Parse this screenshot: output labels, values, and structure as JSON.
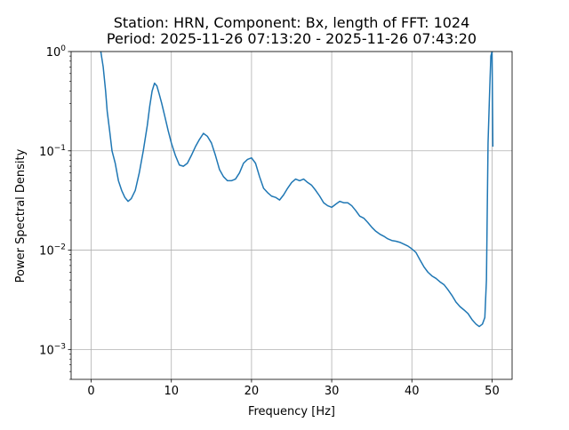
{
  "chart_data": {
    "type": "line",
    "title": "Station: HRN, Component: Bx, length of FFT: 1024",
    "subtitle": "Period: 2025-11-26 07:13:20 - 2025-11-26 07:43:20",
    "xlabel": "Frequency [Hz]",
    "ylabel": "Power Spectral Density",
    "xlim": [
      -2.5,
      52.5
    ],
    "ylim": [
      0.0005,
      1
    ],
    "yscale": "log",
    "grid": true,
    "x_ticks": [
      0,
      10,
      20,
      30,
      40,
      50
    ],
    "x_tick_labels": [
      "0",
      "10",
      "20",
      "30",
      "40",
      "50"
    ],
    "y_ticks": [
      0.001,
      0.01,
      0.1,
      1
    ],
    "series": [
      {
        "color": "#1f77b4",
        "x": [
          1.2,
          1.5,
          1.8,
          2.0,
          2.3,
          2.6,
          3.0,
          3.4,
          3.8,
          4.2,
          4.6,
          5.0,
          5.5,
          6.0,
          6.5,
          7.0,
          7.3,
          7.6,
          7.9,
          8.2,
          8.5,
          8.8,
          9.2,
          9.6,
          10.0,
          10.5,
          11.0,
          11.5,
          12.0,
          12.5,
          13.0,
          13.5,
          14.0,
          14.5,
          15.0,
          15.5,
          16.0,
          16.5,
          17.0,
          17.5,
          18.0,
          18.5,
          19.0,
          19.5,
          20.0,
          20.5,
          21.0,
          21.5,
          22.0,
          22.5,
          23.0,
          23.5,
          24.0,
          24.5,
          25.0,
          25.5,
          26.0,
          26.5,
          27.0,
          27.5,
          28.0,
          28.5,
          29.0,
          29.5,
          30.0,
          30.5,
          31.0,
          31.5,
          32.0,
          32.5,
          33.0,
          33.5,
          34.0,
          34.5,
          35.0,
          35.5,
          36.0,
          36.5,
          37.0,
          37.5,
          38.0,
          38.5,
          39.0,
          39.5,
          40.0,
          40.5,
          41.0,
          41.5,
          42.0,
          42.5,
          43.0,
          43.5,
          44.0,
          44.5,
          45.0,
          45.5,
          46.0,
          46.5,
          47.0,
          47.5,
          48.0,
          48.4,
          48.8,
          49.1,
          49.3,
          49.5,
          49.7,
          49.85,
          50.0,
          50.1
        ],
        "y": [
          1.0,
          0.7,
          0.4,
          0.25,
          0.16,
          0.1,
          0.075,
          0.05,
          0.04,
          0.034,
          0.031,
          0.033,
          0.04,
          0.06,
          0.1,
          0.18,
          0.28,
          0.4,
          0.48,
          0.45,
          0.37,
          0.3,
          0.22,
          0.16,
          0.12,
          0.09,
          0.072,
          0.07,
          0.075,
          0.09,
          0.11,
          0.13,
          0.15,
          0.14,
          0.12,
          0.09,
          0.065,
          0.055,
          0.05,
          0.05,
          0.052,
          0.06,
          0.075,
          0.082,
          0.085,
          0.075,
          0.055,
          0.042,
          0.038,
          0.035,
          0.034,
          0.032,
          0.036,
          0.042,
          0.048,
          0.052,
          0.05,
          0.052,
          0.048,
          0.045,
          0.04,
          0.035,
          0.03,
          0.028,
          0.027,
          0.029,
          0.031,
          0.03,
          0.03,
          0.028,
          0.025,
          0.022,
          0.021,
          0.019,
          0.017,
          0.0155,
          0.0145,
          0.0138,
          0.013,
          0.0125,
          0.0123,
          0.012,
          0.0115,
          0.011,
          0.0103,
          0.0095,
          0.008,
          0.0068,
          0.006,
          0.0055,
          0.0052,
          0.0048,
          0.0045,
          0.004,
          0.0035,
          0.003,
          0.0027,
          0.0025,
          0.0023,
          0.002,
          0.0018,
          0.0017,
          0.0018,
          0.0021,
          0.005,
          0.12,
          0.4,
          0.9,
          1.0,
          0.11
        ]
      }
    ]
  }
}
